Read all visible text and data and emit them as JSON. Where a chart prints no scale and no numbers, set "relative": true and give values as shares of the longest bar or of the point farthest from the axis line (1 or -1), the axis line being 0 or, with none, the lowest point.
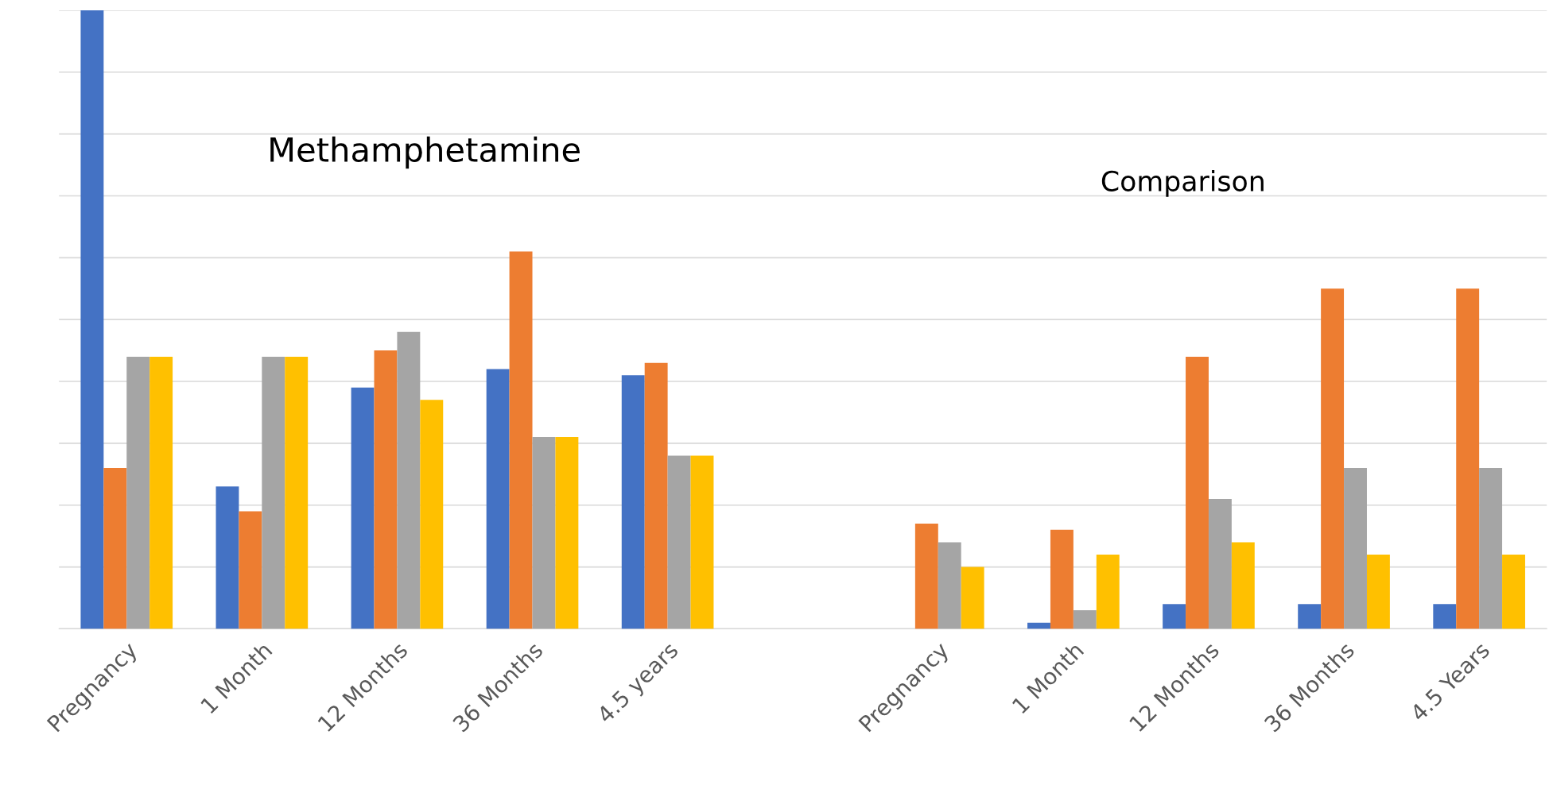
{
  "chart_data": {
    "type": "bar",
    "relative": true,
    "grid": "y",
    "categories": [
      "Pregnancy",
      "1 Month",
      "12 Months",
      "36 Months",
      "4.5 years",
      null,
      "Pregnancy",
      "1 Month",
      "12 Months",
      "36 Months",
      "4.5 Years"
    ],
    "series": [
      {
        "color": "#4472c4",
        "values": [
          1.0,
          0.23,
          0.39,
          0.42,
          0.41,
          null,
          0,
          0.01,
          0.04,
          0.04,
          0.04
        ]
      },
      {
        "color": "#ed7d31",
        "values": [
          0.26,
          0.19,
          0.45,
          0.61,
          0.43,
          null,
          0.17,
          0.16,
          0.44,
          0.55,
          0.55
        ]
      },
      {
        "color": "#a5a5a5",
        "values": [
          0.44,
          0.44,
          0.48,
          0.31,
          0.28,
          null,
          0.14,
          0.03,
          0.21,
          0.26,
          0.26
        ]
      },
      {
        "color": "#ffc000",
        "values": [
          0.44,
          0.44,
          0.37,
          0.31,
          0.28,
          null,
          0.1,
          0.12,
          0.14,
          0.12,
          0.12
        ]
      }
    ],
    "annotations": [
      "Methamphetamine",
      "Comparison"
    ]
  }
}
